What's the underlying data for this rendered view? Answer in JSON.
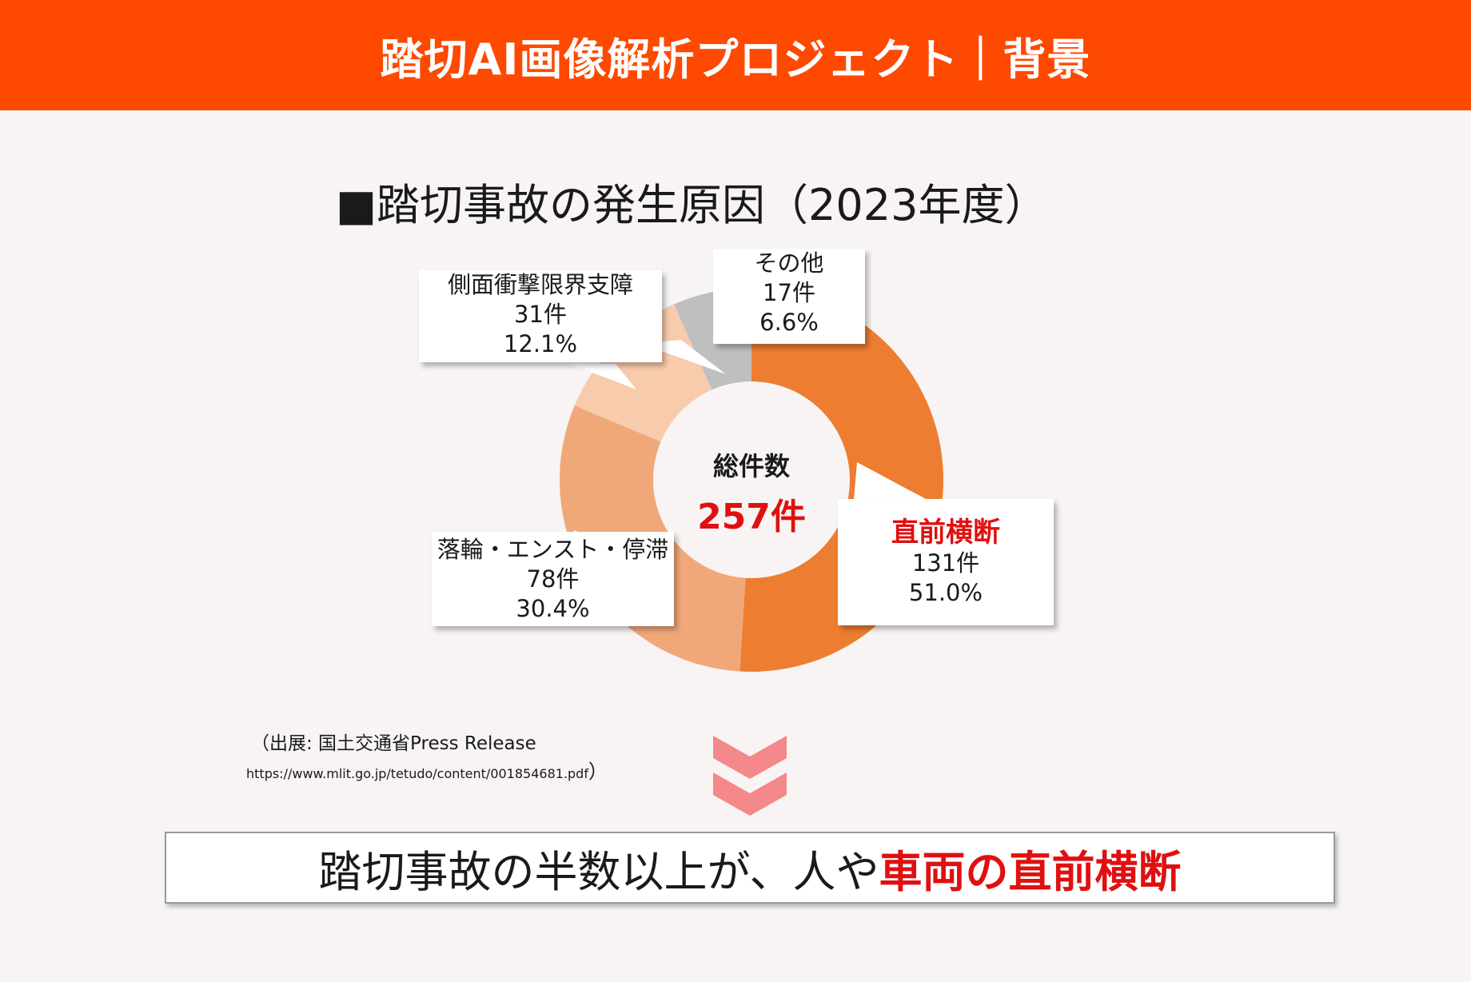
{
  "header": {
    "title": "踏切AI画像解析プロジェクト｜背景"
  },
  "chart_data": {
    "type": "pie",
    "title": "■踏切事故の発生原因（2023年度）",
    "center_label": "総件数",
    "center_value": "257件",
    "slices": [
      {
        "name": "直前横断",
        "count_label": "131件",
        "percent_label": "51.0%",
        "value": 131,
        "percent": 51.0,
        "color": "#ed7d31"
      },
      {
        "name": "落輪・エンスト・停滞",
        "count_label": "78件",
        "percent_label": "30.4%",
        "value": 78,
        "percent": 30.4,
        "color": "#f0a879"
      },
      {
        "name": "側面衝撃限界支障",
        "count_label": "31件",
        "percent_label": "12.1%",
        "value": 31,
        "percent": 12.1,
        "color": "#f8cbad"
      },
      {
        "name": "その他",
        "count_label": "17件",
        "percent_label": "6.6%",
        "value": 17,
        "percent": 6.6,
        "color": "#bfbfbf"
      }
    ]
  },
  "source": {
    "line1": "（出展: 国土交通省Press Release",
    "url": "https://www.mlit.go.jp/tetudo/content/001854681.pdf",
    "close": "）"
  },
  "conclusion": {
    "prefix": "踏切事故の半数以上が、人や",
    "emphasis": "車両の直前横断"
  },
  "colors": {
    "header": "#fe4900",
    "emphasis": "#e01010",
    "arrow": "#f4888a"
  }
}
